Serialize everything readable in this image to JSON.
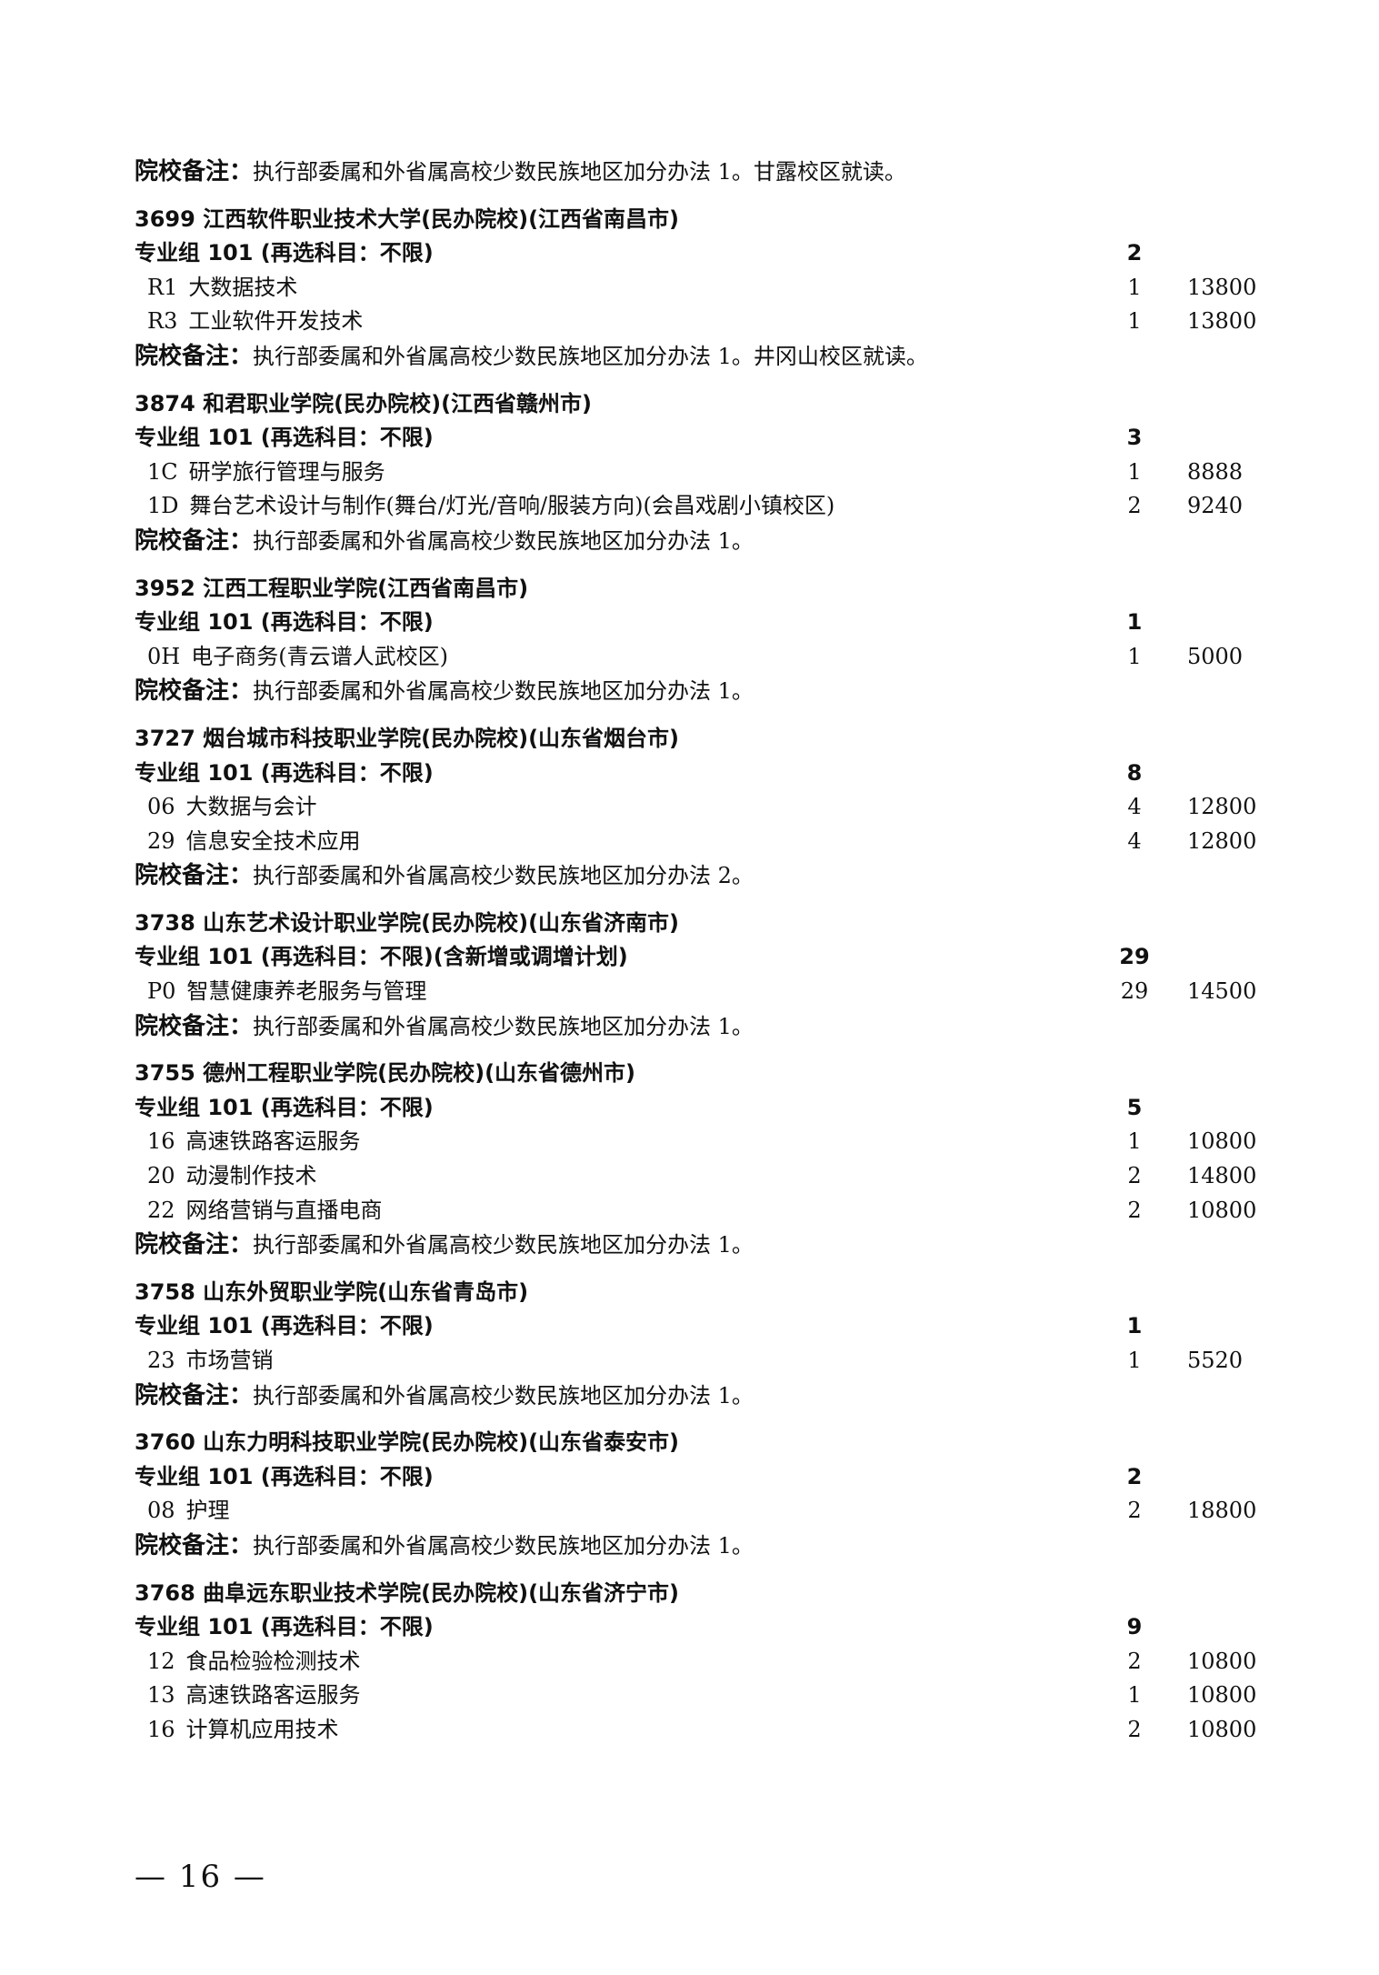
{
  "top_remark": {
    "label": "院校备注：",
    "text": "执行部委属和外省属高校少数民族地区加分办法 1。甘露校区就读。"
  },
  "schools": [
    {
      "header": "3699 江西软件职业技术大学(民办院校)(江西省南昌市)",
      "group": {
        "label": "专业组 101 (再选科目：不限)",
        "count": "2"
      },
      "majors": [
        {
          "code": "R1",
          "name": "大数据技术",
          "count": "1",
          "fee": "13800"
        },
        {
          "code": "R3",
          "name": "工业软件开发技术",
          "count": "1",
          "fee": "13800"
        }
      ],
      "remark": "执行部委属和外省属高校少数民族地区加分办法 1。井冈山校区就读。"
    },
    {
      "header": "3874 和君职业学院(民办院校)(江西省赣州市)",
      "group": {
        "label": "专业组 101 (再选科目：不限)",
        "count": "3"
      },
      "majors": [
        {
          "code": "1C",
          "name": "研学旅行管理与服务",
          "count": "1",
          "fee": "8888"
        },
        {
          "code": "1D",
          "name": "舞台艺术设计与制作(舞台/灯光/音响/服装方向)(会昌戏剧小镇校区)",
          "count": "2",
          "fee": "9240"
        }
      ],
      "remark": "执行部委属和外省属高校少数民族地区加分办法 1。"
    },
    {
      "header": "3952 江西工程职业学院(江西省南昌市)",
      "group": {
        "label": "专业组 101 (再选科目：不限)",
        "count": "1"
      },
      "majors": [
        {
          "code": "0H",
          "name": "电子商务(青云谱人武校区)",
          "count": "1",
          "fee": "5000"
        }
      ],
      "remark": "执行部委属和外省属高校少数民族地区加分办法 1。"
    },
    {
      "header": "3727 烟台城市科技职业学院(民办院校)(山东省烟台市)",
      "group": {
        "label": "专业组 101 (再选科目：不限)",
        "count": "8"
      },
      "majors": [
        {
          "code": "06",
          "name": "大数据与会计",
          "count": "4",
          "fee": "12800"
        },
        {
          "code": "29",
          "name": "信息安全技术应用",
          "count": "4",
          "fee": "12800"
        }
      ],
      "remark": "执行部委属和外省属高校少数民族地区加分办法 2。"
    },
    {
      "header": "3738 山东艺术设计职业学院(民办院校)(山东省济南市)",
      "group": {
        "label": "专业组 101 (再选科目：不限)(含新增或调增计划)",
        "count": "29"
      },
      "majors": [
        {
          "code": "P0",
          "name": "智慧健康养老服务与管理",
          "count": "29",
          "fee": "14500"
        }
      ],
      "remark": "执行部委属和外省属高校少数民族地区加分办法 1。"
    },
    {
      "header": "3755 德州工程职业学院(民办院校)(山东省德州市)",
      "group": {
        "label": "专业组 101 (再选科目：不限)",
        "count": "5"
      },
      "majors": [
        {
          "code": "16",
          "name": "高速铁路客运服务",
          "count": "1",
          "fee": "10800"
        },
        {
          "code": "20",
          "name": "动漫制作技术",
          "count": "2",
          "fee": "14800"
        },
        {
          "code": "22",
          "name": "网络营销与直播电商",
          "count": "2",
          "fee": "10800"
        }
      ],
      "remark": "执行部委属和外省属高校少数民族地区加分办法 1。"
    },
    {
      "header": "3758 山东外贸职业学院(山东省青岛市)",
      "group": {
        "label": "专业组 101 (再选科目：不限)",
        "count": "1"
      },
      "majors": [
        {
          "code": "23",
          "name": "市场营销",
          "count": "1",
          "fee": "5520"
        }
      ],
      "remark": "执行部委属和外省属高校少数民族地区加分办法 1。"
    },
    {
      "header": "3760 山东力明科技职业学院(民办院校)(山东省泰安市)",
      "group": {
        "label": "专业组 101 (再选科目：不限)",
        "count": "2"
      },
      "majors": [
        {
          "code": "08",
          "name": "护理",
          "count": "2",
          "fee": "18800"
        }
      ],
      "remark": "执行部委属和外省属高校少数民族地区加分办法 1。"
    },
    {
      "header": "3768 曲阜远东职业技术学院(民办院校)(山东省济宁市)",
      "group": {
        "label": "专业组 101 (再选科目：不限)",
        "count": "9"
      },
      "majors": [
        {
          "code": "12",
          "name": "食品检验检测技术",
          "count": "2",
          "fee": "10800"
        },
        {
          "code": "13",
          "name": "高速铁路客运服务",
          "count": "1",
          "fee": "10800"
        },
        {
          "code": "16",
          "name": "计算机应用技术",
          "count": "2",
          "fee": "10800"
        }
      ],
      "remark": null
    }
  ],
  "remark_label": "院校备注：",
  "page_number": "— 16 —"
}
